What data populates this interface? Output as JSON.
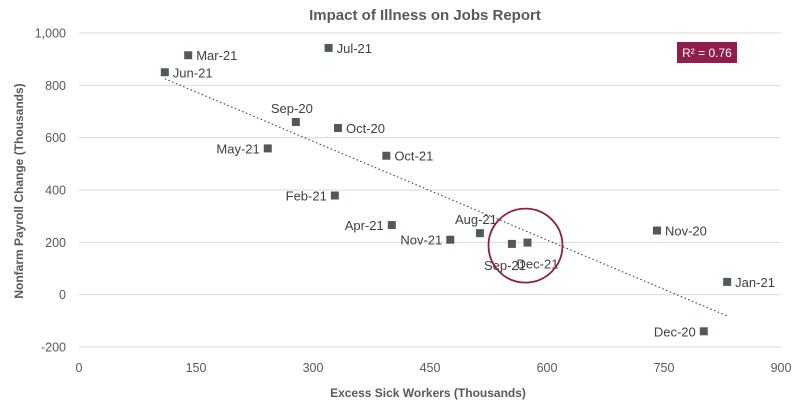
{
  "chart_data": {
    "type": "scatter",
    "title": "Impact of Illness on Jobs Report",
    "xlabel": "Excess Sick Workers (Thousands)",
    "ylabel": "Nonfarm Payroll Change (Thousands)",
    "xlim": [
      0,
      900
    ],
    "ylim": [
      -200,
      1000
    ],
    "xticks": [
      "0",
      "150",
      "300",
      "450",
      "600",
      "750",
      "900"
    ],
    "yticks": [
      "1,000",
      "800",
      "600",
      "400",
      "200",
      "0",
      "-200"
    ],
    "grid": "horizontal",
    "points": [
      {
        "label": "Jun-21",
        "x": 110,
        "y": 850,
        "label_pos": "right"
      },
      {
        "label": "Mar-21",
        "x": 140,
        "y": 915,
        "label_pos": "right"
      },
      {
        "label": "Jul-21",
        "x": 320,
        "y": 943,
        "label_pos": "right"
      },
      {
        "label": "Sep-20",
        "x": 278,
        "y": 660,
        "label_pos": "above"
      },
      {
        "label": "Oct-20",
        "x": 332,
        "y": 637,
        "label_pos": "right"
      },
      {
        "label": "May-21",
        "x": 242,
        "y": 559,
        "label_pos": "left"
      },
      {
        "label": "Oct-21",
        "x": 394,
        "y": 531,
        "label_pos": "right"
      },
      {
        "label": "Feb-21",
        "x": 328,
        "y": 379,
        "label_pos": "left"
      },
      {
        "label": "Apr-21",
        "x": 401,
        "y": 266,
        "label_pos": "left"
      },
      {
        "label": "Aug-21",
        "x": 514,
        "y": 235,
        "label_pos": "above"
      },
      {
        "label": "Nov-21",
        "x": 476,
        "y": 210,
        "label_pos": "left"
      },
      {
        "label": "Sep-21",
        "x": 555,
        "y": 194,
        "label_pos": "below-left"
      },
      {
        "label": "Dec-21",
        "x": 575,
        "y": 199,
        "label_pos": "below"
      },
      {
        "label": "Nov-20",
        "x": 741,
        "y": 245,
        "label_pos": "right"
      },
      {
        "label": "Jan-21",
        "x": 831,
        "y": 49,
        "label_pos": "right"
      },
      {
        "label": "Dec-20",
        "x": 801,
        "y": -140,
        "label_pos": "left"
      }
    ],
    "trendline": {
      "style": "dotted",
      "x": [
        110,
        830
      ],
      "y": [
        825,
        -80
      ]
    },
    "highlight": {
      "label": "Dec-21",
      "shape": "circle",
      "color": "#8e1e4b"
    },
    "annotation": {
      "text": "R² = 0.76",
      "bg": "#8e1e4b",
      "fg": "#ffffff",
      "placement": "top-right"
    },
    "colors": {
      "marker": "#4f5b55",
      "grid": "#d9d9d9",
      "text": "#595959",
      "trend": "#404040"
    }
  }
}
